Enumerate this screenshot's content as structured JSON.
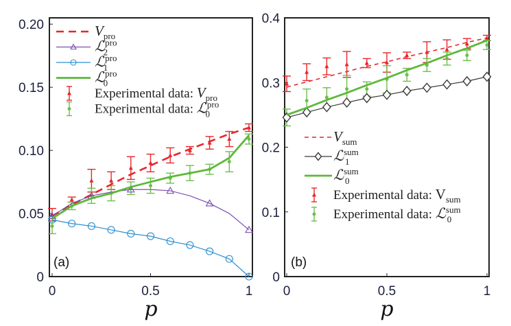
{
  "chart_data": [
    {
      "type": "line",
      "panel_tag": "(a)",
      "xlabel": "p",
      "ylabel": "",
      "xlim": [
        0,
        1
      ],
      "ylim": [
        0,
        0.205
      ],
      "xticks": [
        0,
        0.5,
        1
      ],
      "xtick_labels": [
        "0",
        "0.5",
        "1"
      ],
      "yticks": [
        0,
        0.05,
        0.1,
        0.15,
        0.2
      ],
      "ytick_labels": [
        "0",
        "0.05",
        "0.10",
        "0.15",
        "0.20"
      ],
      "grid": false,
      "legend_position": "top-left",
      "x": [
        0,
        0.1,
        0.2,
        0.3,
        0.4,
        0.5,
        0.6,
        0.7,
        0.8,
        0.9,
        1.0
      ],
      "series": [
        {
          "name": "V_pro",
          "label_main": "V",
          "label_sub": "pro",
          "label_sup": "",
          "style": "dashed",
          "color": "#e8252b",
          "marker": "none",
          "values": [
            0.048,
            0.057,
            0.065,
            0.073,
            0.081,
            0.088,
            0.095,
            0.101,
            0.107,
            0.113,
            0.118
          ]
        },
        {
          "name": "L2_pro",
          "label_main": "ℒ",
          "label_sub": "2",
          "label_sup": "pro",
          "style": "solid-thin",
          "color": "#7b4fb0",
          "marker": "triangle",
          "marker_every": 2,
          "values": [
            0.048,
            0.058,
            0.064,
            0.067,
            0.069,
            0.069,
            0.068,
            0.064,
            0.058,
            0.05,
            0.037
          ]
        },
        {
          "name": "L1_pro",
          "label_main": "ℒ",
          "label_sub": "1",
          "label_sup": "pro",
          "style": "solid-thin",
          "color": "#2a8fd0",
          "marker": "circle",
          "marker_every": 1,
          "values": [
            0.045,
            0.042,
            0.04,
            0.037,
            0.034,
            0.032,
            0.028,
            0.025,
            0.02,
            0.014,
            0.0
          ]
        },
        {
          "name": "L0_pro",
          "label_main": "ℒ",
          "label_sub": "0",
          "label_sup": "pro",
          "style": "solid-thick",
          "color": "#5cb83a",
          "marker": "none",
          "values": [
            0.046,
            0.056,
            0.062,
            0.066,
            0.071,
            0.075,
            0.079,
            0.082,
            0.085,
            0.094,
            0.112
          ]
        }
      ],
      "errorbars": [
        {
          "name": "Experimental data: V_pro",
          "label_text": "Experimental data: ",
          "label_main": "V",
          "label_sub": "pro",
          "label_sup": "",
          "color": "#e8252b",
          "marker": "triangle",
          "values": [
            0.049,
            0.061,
            0.076,
            0.076,
            0.086,
            0.09,
            0.096,
            0.1,
            0.106,
            0.109,
            0.118
          ],
          "errors": [
            0.005,
            0.002,
            0.009,
            0.007,
            0.009,
            0.007,
            0.006,
            0.003,
            0.005,
            0.006,
            0.003
          ]
        },
        {
          "name": "Experimental data: L0_pro",
          "label_text": "Experimental data: ",
          "label_main": "ℒ",
          "label_sub": "0",
          "label_sup": "pro",
          "color": "#6cbf4a",
          "marker": "dot",
          "values": [
            0.04,
            0.056,
            0.064,
            0.066,
            0.07,
            0.072,
            0.078,
            0.082,
            0.085,
            0.091,
            0.109
          ],
          "errors": [
            0.006,
            0.003,
            0.006,
            0.006,
            0.005,
            0.006,
            0.004,
            0.006,
            0.004,
            0.008,
            0.004
          ]
        }
      ]
    },
    {
      "type": "line",
      "panel_tag": "(b)",
      "xlabel": "p",
      "ylabel": "",
      "xlim": [
        0,
        1
      ],
      "ylim": [
        0,
        0.4
      ],
      "xticks": [
        0,
        0.5,
        1
      ],
      "xtick_labels": [
        "0",
        "0.5",
        "1"
      ],
      "yticks": [
        0,
        0.1,
        0.2,
        0.3,
        0.4
      ],
      "ytick_labels": [
        "0",
        "0.1",
        "0.2",
        "0.3",
        "0.4"
      ],
      "grid": false,
      "legend_position": "bottom-left",
      "x": [
        0,
        0.1,
        0.2,
        0.3,
        0.4,
        0.5,
        0.6,
        0.7,
        0.8,
        0.9,
        1.0
      ],
      "series": [
        {
          "name": "V_sum",
          "label_main": "V",
          "label_sub": "sum",
          "label_sup": "",
          "style": "dashed-thin",
          "color": "#e8252b",
          "marker": "none",
          "values": [
            0.293,
            0.301,
            0.309,
            0.317,
            0.325,
            0.332,
            0.34,
            0.347,
            0.354,
            0.362,
            0.369
          ]
        },
        {
          "name": "L1_sum",
          "label_main": "ℒ",
          "label_sub": "1",
          "label_sup": "sum",
          "style": "solid-thin",
          "color": "#3a3a3a",
          "marker": "diamond",
          "marker_every": 1,
          "values": [
            0.246,
            0.254,
            0.262,
            0.269,
            0.276,
            0.281,
            0.287,
            0.292,
            0.297,
            0.302,
            0.309
          ]
        },
        {
          "name": "L0_sum",
          "label_main": "ℒ",
          "label_sub": "0",
          "label_sup": "sum",
          "style": "solid-thick",
          "color": "#5cb83a",
          "marker": "none",
          "values": [
            0.25,
            0.261,
            0.273,
            0.284,
            0.296,
            0.307,
            0.319,
            0.33,
            0.342,
            0.353,
            0.365
          ]
        }
      ],
      "errorbars": [
        {
          "name": "Experimental data: V_sum",
          "label_text": "Experimental data: ",
          "label_main": "V",
          "label_sub": "sum",
          "label_sup": "",
          "upright": true,
          "color": "#e8252b",
          "marker": "triangle",
          "values": [
            0.298,
            0.316,
            0.325,
            0.328,
            0.33,
            0.331,
            0.342,
            0.347,
            0.351,
            0.36,
            0.369
          ],
          "errors": [
            0.012,
            0.013,
            0.013,
            0.02,
            0.007,
            0.015,
            0.005,
            0.016,
            0.015,
            0.008,
            0.004
          ]
        },
        {
          "name": "Experimental data: L0_sum",
          "label_text": "Experimental data: ",
          "label_main": "ℒ",
          "label_sub": "0",
          "label_sup": "sum",
          "color": "#6cbf4a",
          "marker": "dot",
          "values": [
            0.246,
            0.272,
            0.277,
            0.29,
            0.29,
            0.305,
            0.312,
            0.327,
            0.337,
            0.342,
            0.358
          ],
          "errors": [
            0.013,
            0.018,
            0.015,
            0.021,
            0.011,
            0.021,
            0.01,
            0.01,
            0.01,
            0.008,
            0.007
          ]
        }
      ]
    }
  ]
}
